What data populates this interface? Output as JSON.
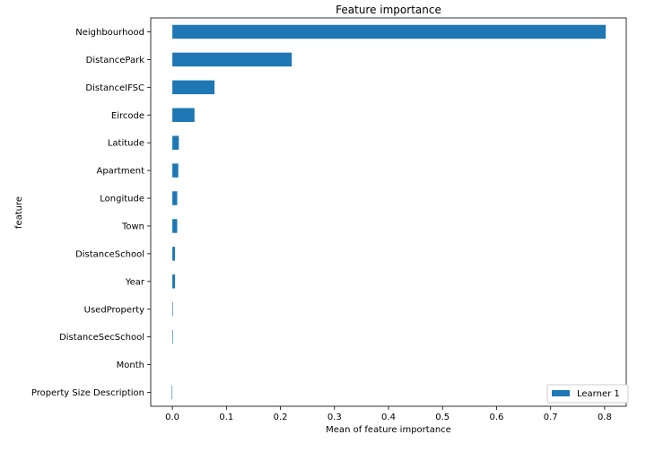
{
  "chart_data": {
    "type": "bar",
    "orientation": "horizontal",
    "title": "Feature importance",
    "xlabel": "Mean of feature importance",
    "ylabel": "feature",
    "xlim": [
      -0.04,
      0.84
    ],
    "xticks": [
      0.0,
      0.1,
      0.2,
      0.3,
      0.4,
      0.5,
      0.6,
      0.7,
      0.8
    ],
    "xtick_labels": [
      "0.0",
      "0.1",
      "0.2",
      "0.3",
      "0.4",
      "0.5",
      "0.6",
      "0.7",
      "0.8"
    ],
    "grid": false,
    "legend_position": "bottom-right",
    "categories": [
      "Neighbourhood",
      "DistancePark",
      "DistanceIFSC",
      "Eircode",
      "Latitude",
      "Apartment",
      "Longitude",
      "Town",
      "DistanceSchool",
      "Year",
      "UsedProperty",
      "DistanceSecSchool",
      "Month",
      "Property Size Description"
    ],
    "series": [
      {
        "name": "Learner 1",
        "color": "#1f77b4",
        "values": [
          0.802,
          0.221,
          0.078,
          0.041,
          0.012,
          0.011,
          0.009,
          0.009,
          0.005,
          0.005,
          0.001,
          0.001,
          0.0,
          -0.001
        ]
      }
    ]
  }
}
